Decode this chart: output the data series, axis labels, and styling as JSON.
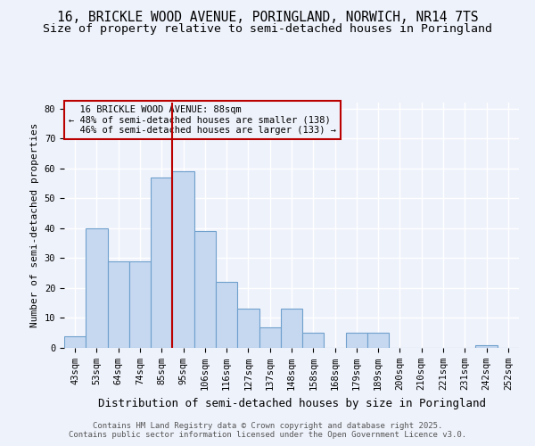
{
  "title_line1": "16, BRICKLE WOOD AVENUE, PORINGLAND, NORWICH, NR14 7TS",
  "title_line2": "Size of property relative to semi-detached houses in Poringland",
  "xlabel": "Distribution of semi-detached houses by size in Poringland",
  "ylabel": "Number of semi-detached properties",
  "footnote1": "Contains HM Land Registry data © Crown copyright and database right 2025.",
  "footnote2": "Contains public sector information licensed under the Open Government Licence v3.0.",
  "bar_labels": [
    "43sqm",
    "53sqm",
    "64sqm",
    "74sqm",
    "85sqm",
    "95sqm",
    "106sqm",
    "116sqm",
    "127sqm",
    "137sqm",
    "148sqm",
    "158sqm",
    "168sqm",
    "179sqm",
    "189sqm",
    "200sqm",
    "210sqm",
    "221sqm",
    "231sqm",
    "242sqm",
    "252sqm"
  ],
  "bar_values": [
    4,
    40,
    29,
    29,
    57,
    59,
    39,
    22,
    13,
    7,
    13,
    5,
    0,
    5,
    5,
    0,
    0,
    0,
    0,
    1,
    0
  ],
  "bar_color": "#c5d8f0",
  "bar_edge_color": "#6fa0cc",
  "property_label": "16 BRICKLE WOOD AVENUE: 88sqm",
  "pct_smaller": 48,
  "n_smaller": 138,
  "pct_larger": 46,
  "n_larger": 133,
  "vline_x": 4.5,
  "vline_color": "#bb0000",
  "annotation_box_color": "#bb0000",
  "ylim": [
    0,
    82
  ],
  "yticks": [
    0,
    10,
    20,
    30,
    40,
    50,
    60,
    70,
    80
  ],
  "background_color": "#eef2fb",
  "grid_color": "#ffffff",
  "title_fontsize": 10.5,
  "subtitle_fontsize": 9.5,
  "tick_fontsize": 7.5,
  "ylabel_fontsize": 8,
  "xlabel_fontsize": 9
}
